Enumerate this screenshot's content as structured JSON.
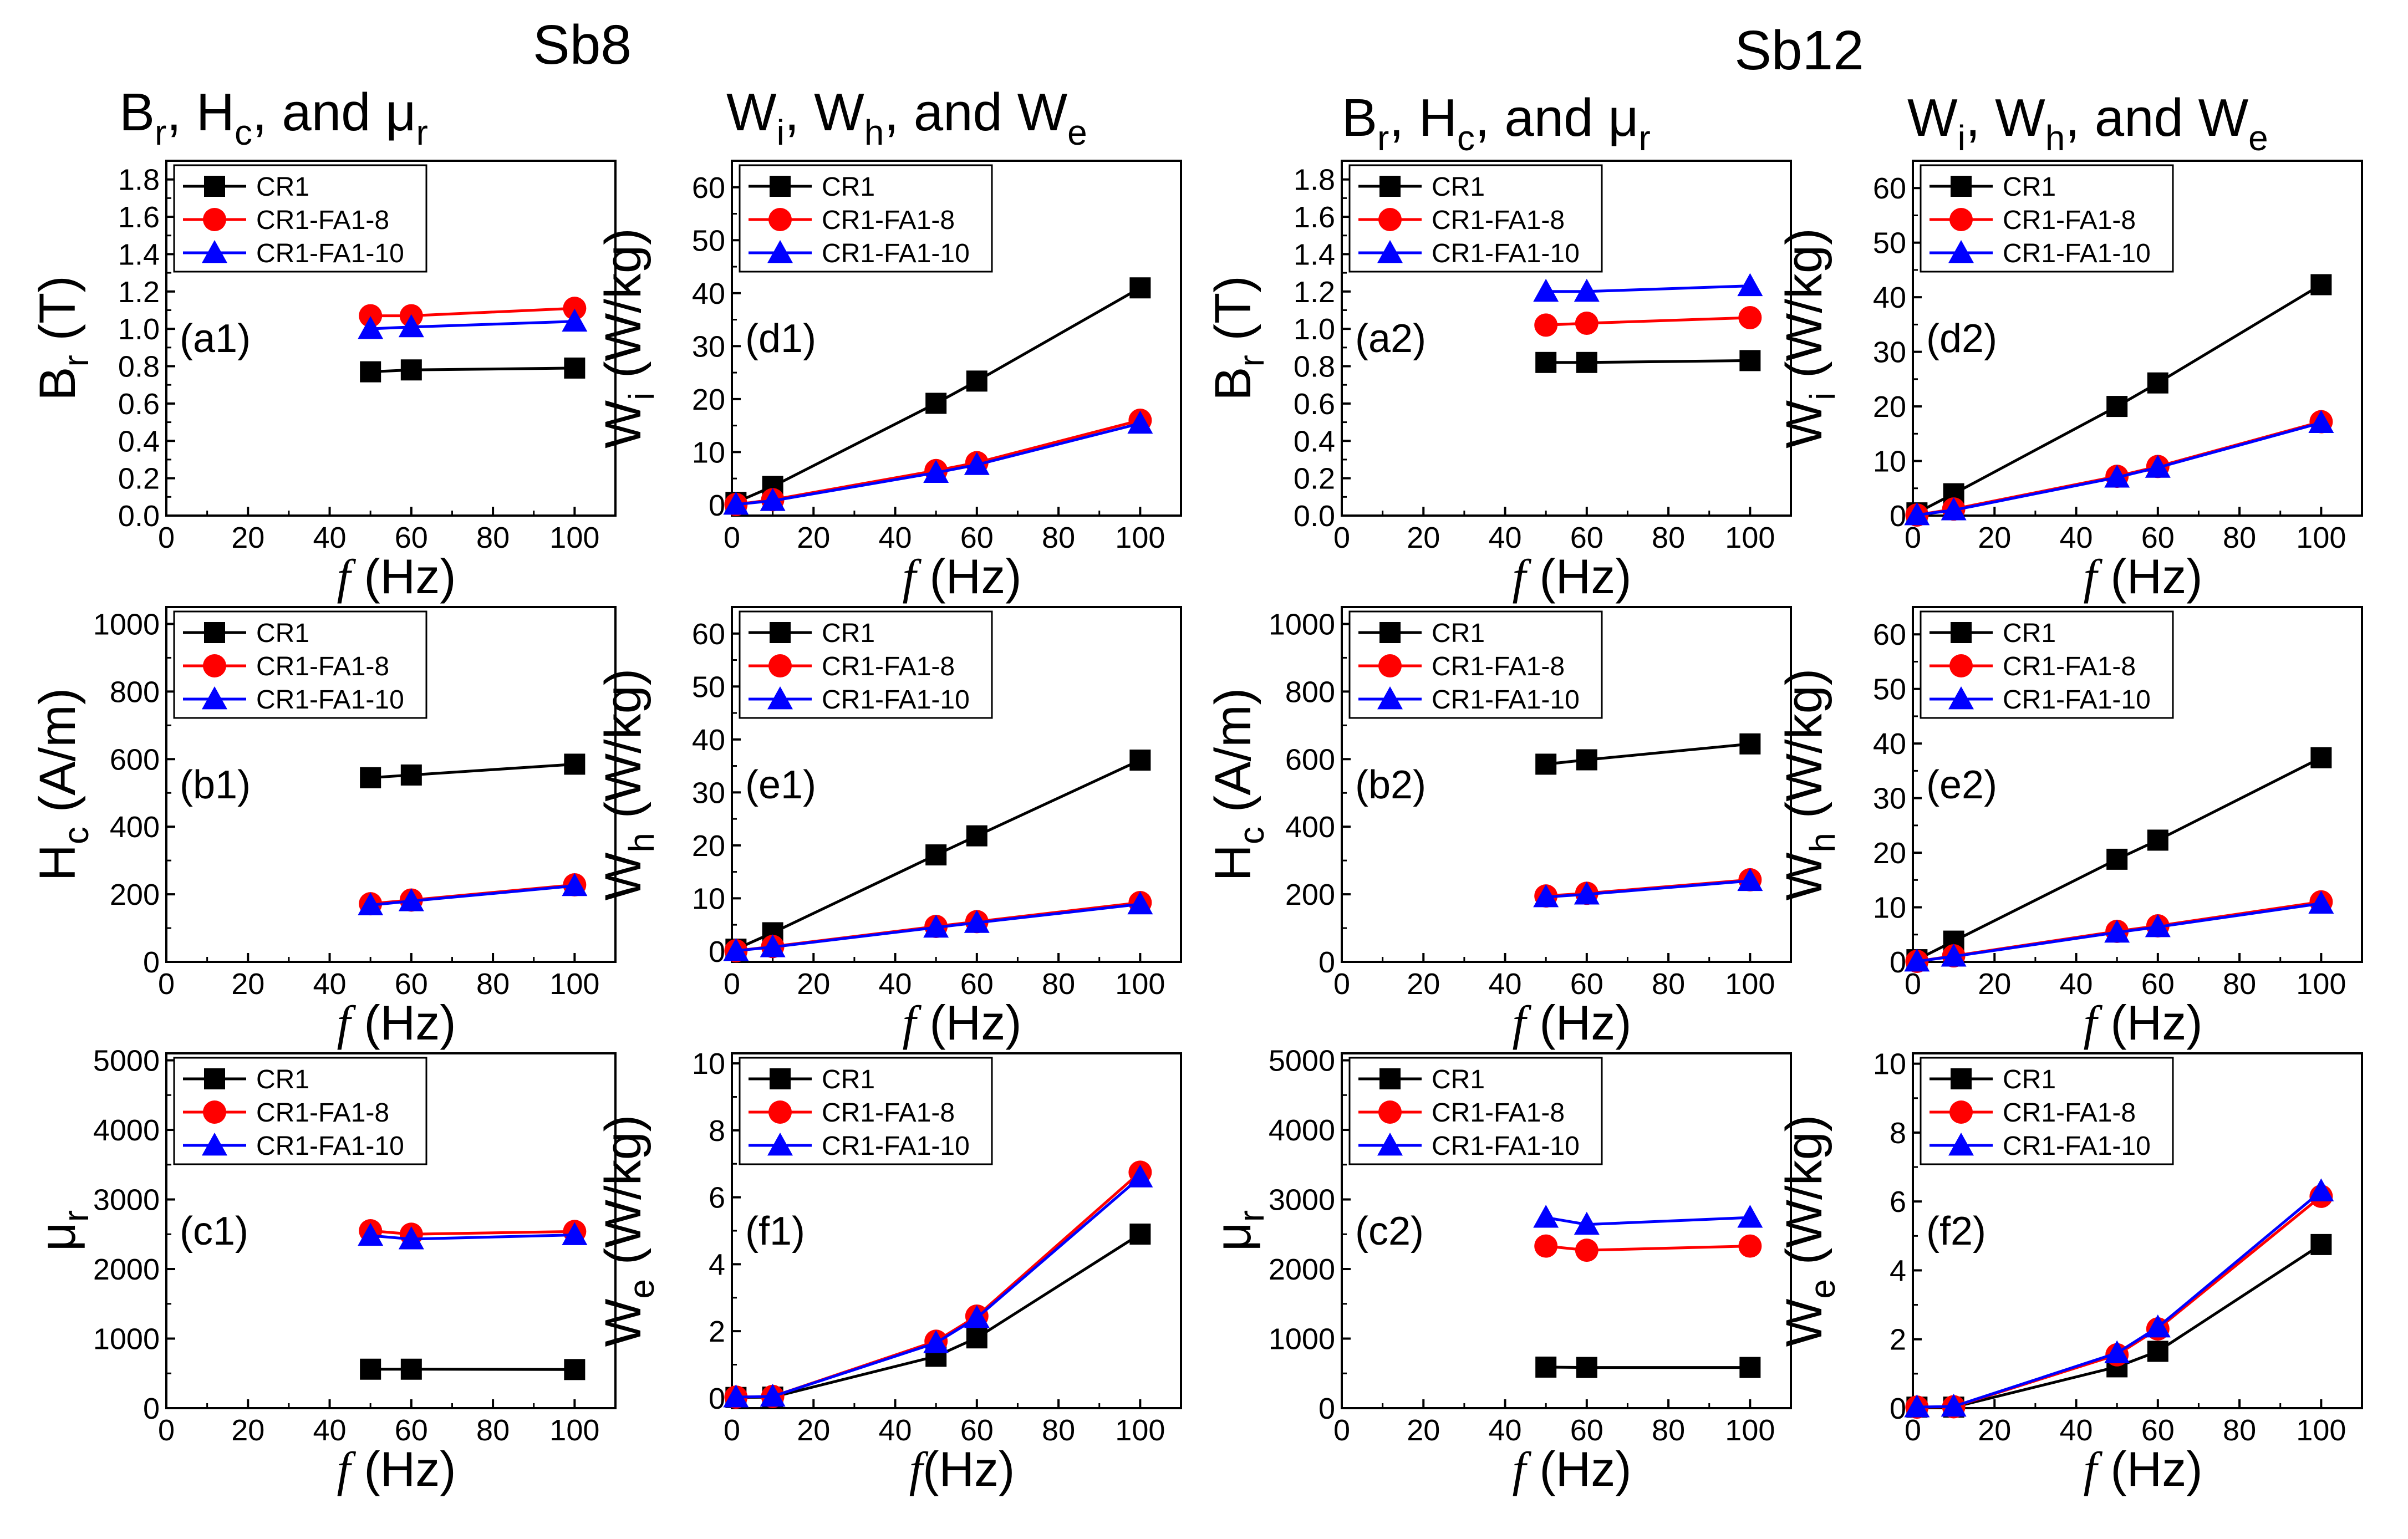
{
  "figure": {
    "group_titles": [
      "Sb8",
      "Sb12"
    ],
    "column_headers": [
      {
        "main": "B",
        "s1": "r",
        "mid": ", H",
        "s2": "c",
        "tail": ", and μ",
        "s3": "r"
      },
      {
        "main": "W",
        "s1": "i",
        "mid": ", W",
        "s2": "h",
        "tail": ", and W",
        "s3": "e"
      },
      {
        "main": "B",
        "s1": "r",
        "mid": ", H",
        "s2": "c",
        "tail": ", and μ",
        "s3": "r"
      },
      {
        "main": "W",
        "s1": "i",
        "mid": ", W",
        "s2": "h",
        "tail": ", and W",
        "s3": "e"
      }
    ]
  },
  "colors": {
    "CR1": "#000000",
    "CR1-FA1-8": "#ff0000",
    "CR1-FA1-10": "#0000ff"
  },
  "chart_data": [
    {
      "id": "a1",
      "type": "line",
      "label": "(a1)",
      "ylabel": {
        "main": "B",
        "sub": "r",
        "unit": " (T)"
      },
      "xlabel": {
        "f": "f",
        "unit": " (Hz)"
      },
      "xlim": [
        0,
        110
      ],
      "ylim": [
        0,
        1.9
      ],
      "xticks": [
        0,
        20,
        40,
        60,
        80,
        100
      ],
      "yticks": [
        0.0,
        0.2,
        0.4,
        0.6,
        0.8,
        1.0,
        1.2,
        1.4,
        1.6,
        1.8
      ],
      "ytick_decimals": 1,
      "series": [
        {
          "name": "CR1",
          "marker": "square",
          "x": [
            50,
            60,
            100
          ],
          "y": [
            0.77,
            0.78,
            0.79
          ]
        },
        {
          "name": "CR1-FA1-8",
          "marker": "circle",
          "x": [
            50,
            60,
            100
          ],
          "y": [
            1.07,
            1.07,
            1.11
          ]
        },
        {
          "name": "CR1-FA1-10",
          "marker": "triangle",
          "x": [
            50,
            60,
            100
          ],
          "y": [
            1.0,
            1.01,
            1.04
          ]
        }
      ]
    },
    {
      "id": "d1",
      "type": "line",
      "label": "(d1)",
      "ylabel": {
        "main": "W",
        "sub": "i",
        "unit": " (W/kg)"
      },
      "xlabel": {
        "f": "f",
        "unit": " (Hz)"
      },
      "xlim": [
        0,
        110
      ],
      "ylim": [
        -2,
        65
      ],
      "xticks": [
        0,
        20,
        40,
        60,
        80,
        100
      ],
      "yticks": [
        0,
        10,
        20,
        30,
        40,
        50,
        60
      ],
      "ytick_decimals": 0,
      "series": [
        {
          "name": "CR1",
          "marker": "square",
          "x": [
            1,
            10,
            50,
            60,
            100
          ],
          "y": [
            0.5,
            3.5,
            19.2,
            23.4,
            41.0
          ]
        },
        {
          "name": "CR1-FA1-8",
          "marker": "circle",
          "x": [
            1,
            10,
            50,
            60,
            100
          ],
          "y": [
            0.1,
            1.0,
            6.5,
            8.0,
            16.0
          ]
        },
        {
          "name": "CR1-FA1-10",
          "marker": "triangle",
          "x": [
            1,
            10,
            50,
            60,
            100
          ],
          "y": [
            0.1,
            0.8,
            6.1,
            7.6,
            15.4
          ]
        }
      ]
    },
    {
      "id": "a2",
      "type": "line",
      "label": "(a2)",
      "ylabel": {
        "main": "B",
        "sub": "r",
        "unit": " (T)"
      },
      "xlabel": {
        "f": "f",
        "unit": " (Hz)"
      },
      "xlim": [
        0,
        110
      ],
      "ylim": [
        0,
        1.9
      ],
      "xticks": [
        0,
        20,
        40,
        60,
        80,
        100
      ],
      "yticks": [
        0.0,
        0.2,
        0.4,
        0.6,
        0.8,
        1.0,
        1.2,
        1.4,
        1.6,
        1.8
      ],
      "ytick_decimals": 1,
      "series": [
        {
          "name": "CR1",
          "marker": "square",
          "x": [
            50,
            60,
            100
          ],
          "y": [
            0.82,
            0.82,
            0.83
          ]
        },
        {
          "name": "CR1-FA1-8",
          "marker": "circle",
          "x": [
            50,
            60,
            100
          ],
          "y": [
            1.02,
            1.03,
            1.06
          ]
        },
        {
          "name": "CR1-FA1-10",
          "marker": "triangle",
          "x": [
            50,
            60,
            100
          ],
          "y": [
            1.2,
            1.2,
            1.23
          ]
        }
      ]
    },
    {
      "id": "d2",
      "type": "line",
      "label": "(d2)",
      "ylabel": {
        "main": "W",
        "sub": "i",
        "unit": " (W/kg)"
      },
      "xlabel": {
        "f": "f",
        "unit": " (Hz)"
      },
      "xlim": [
        0,
        110
      ],
      "ylim": [
        0,
        65
      ],
      "xticks": [
        0,
        20,
        40,
        60,
        80,
        100
      ],
      "yticks": [
        0,
        10,
        20,
        30,
        40,
        50,
        60
      ],
      "ytick_decimals": 0,
      "series": [
        {
          "name": "CR1",
          "marker": "square",
          "x": [
            1,
            10,
            50,
            60,
            100
          ],
          "y": [
            0.5,
            4.0,
            20.0,
            24.3,
            42.3
          ]
        },
        {
          "name": "CR1-FA1-8",
          "marker": "circle",
          "x": [
            1,
            10,
            50,
            60,
            100
          ],
          "y": [
            0.1,
            1.2,
            7.2,
            9.0,
            17.2
          ]
        },
        {
          "name": "CR1-FA1-10",
          "marker": "triangle",
          "x": [
            1,
            10,
            50,
            60,
            100
          ],
          "y": [
            0.1,
            1.0,
            7.0,
            8.8,
            17.0
          ]
        }
      ]
    },
    {
      "id": "b1",
      "type": "line",
      "label": "(b1)",
      "ylabel": {
        "main": "H",
        "sub": "c",
        "unit": " (A/m)"
      },
      "xlabel": {
        "f": "f",
        "unit": " (Hz)"
      },
      "xlim": [
        0,
        110
      ],
      "ylim": [
        0,
        1050
      ],
      "xticks": [
        0,
        20,
        40,
        60,
        80,
        100
      ],
      "yticks": [
        0,
        200,
        400,
        600,
        800,
        1000
      ],
      "ytick_decimals": 0,
      "series": [
        {
          "name": "CR1",
          "marker": "square",
          "x": [
            50,
            60,
            100
          ],
          "y": [
            545,
            553,
            585
          ]
        },
        {
          "name": "CR1-FA1-8",
          "marker": "circle",
          "x": [
            50,
            60,
            100
          ],
          "y": [
            172,
            183,
            228
          ]
        },
        {
          "name": "CR1-FA1-10",
          "marker": "triangle",
          "x": [
            50,
            60,
            100
          ],
          "y": [
            168,
            180,
            225
          ]
        }
      ]
    },
    {
      "id": "e1",
      "type": "line",
      "label": "(e1)",
      "ylabel": {
        "main": "W",
        "sub": "h",
        "unit": " (W/kg)"
      },
      "xlabel": {
        "f": "f",
        "unit": " (Hz)"
      },
      "xlim": [
        0,
        110
      ],
      "ylim": [
        -2,
        65
      ],
      "xticks": [
        0,
        20,
        40,
        60,
        80,
        100
      ],
      "yticks": [
        0,
        10,
        20,
        30,
        40,
        50,
        60
      ],
      "ytick_decimals": 0,
      "series": [
        {
          "name": "CR1",
          "marker": "square",
          "x": [
            1,
            10,
            50,
            60,
            100
          ],
          "y": [
            0.4,
            3.5,
            18.2,
            21.8,
            36.1
          ]
        },
        {
          "name": "CR1-FA1-8",
          "marker": "circle",
          "x": [
            1,
            10,
            50,
            60,
            100
          ],
          "y": [
            0.1,
            0.9,
            4.7,
            5.6,
            9.2
          ]
        },
        {
          "name": "CR1-FA1-10",
          "marker": "triangle",
          "x": [
            1,
            10,
            50,
            60,
            100
          ],
          "y": [
            0.1,
            0.8,
            4.5,
            5.4,
            8.9
          ]
        }
      ]
    },
    {
      "id": "b2",
      "type": "line",
      "label": "(b2)",
      "ylabel": {
        "main": "H",
        "sub": "c",
        "unit": " (A/m)"
      },
      "xlabel": {
        "f": "f",
        "unit": " (Hz)"
      },
      "xlim": [
        0,
        110
      ],
      "ylim": [
        0,
        1050
      ],
      "xticks": [
        0,
        20,
        40,
        60,
        80,
        100
      ],
      "yticks": [
        0,
        200,
        400,
        600,
        800,
        1000
      ],
      "ytick_decimals": 0,
      "series": [
        {
          "name": "CR1",
          "marker": "square",
          "x": [
            50,
            60,
            100
          ],
          "y": [
            585,
            598,
            645
          ]
        },
        {
          "name": "CR1-FA1-8",
          "marker": "circle",
          "x": [
            50,
            60,
            100
          ],
          "y": [
            195,
            203,
            243
          ]
        },
        {
          "name": "CR1-FA1-10",
          "marker": "triangle",
          "x": [
            50,
            60,
            100
          ],
          "y": [
            192,
            200,
            240
          ]
        }
      ]
    },
    {
      "id": "e2",
      "type": "line",
      "label": "(e2)",
      "ylabel": {
        "main": "W",
        "sub": "h",
        "unit": " (W/kg)"
      },
      "xlabel": {
        "f": "f",
        "unit": " (Hz)"
      },
      "xlim": [
        0,
        110
      ],
      "ylim": [
        0,
        65
      ],
      "xticks": [
        0,
        20,
        40,
        60,
        80,
        100
      ],
      "yticks": [
        0,
        10,
        20,
        30,
        40,
        50,
        60
      ],
      "ytick_decimals": 0,
      "series": [
        {
          "name": "CR1",
          "marker": "square",
          "x": [
            1,
            10,
            50,
            60,
            100
          ],
          "y": [
            0.4,
            3.8,
            18.8,
            22.3,
            37.4
          ]
        },
        {
          "name": "CR1-FA1-8",
          "marker": "circle",
          "x": [
            1,
            10,
            50,
            60,
            100
          ],
          "y": [
            0.1,
            1.1,
            5.6,
            6.6,
            11.0
          ]
        },
        {
          "name": "CR1-FA1-10",
          "marker": "triangle",
          "x": [
            1,
            10,
            50,
            60,
            100
          ],
          "y": [
            0.1,
            1.0,
            5.4,
            6.4,
            10.7
          ]
        }
      ]
    },
    {
      "id": "c1",
      "type": "line",
      "label": "(c1)",
      "ylabel": {
        "main": "μ",
        "sub": "r",
        "unit": ""
      },
      "xlabel": {
        "f": "f",
        "unit": " (Hz)"
      },
      "xlim": [
        0,
        110
      ],
      "ylim": [
        0,
        5100
      ],
      "xticks": [
        0,
        20,
        40,
        60,
        80,
        100
      ],
      "yticks": [
        0,
        1000,
        2000,
        3000,
        4000,
        5000
      ],
      "ytick_decimals": 0,
      "series": [
        {
          "name": "CR1",
          "marker": "square",
          "x": [
            50,
            60,
            100
          ],
          "y": [
            560,
            560,
            555
          ]
        },
        {
          "name": "CR1-FA1-8",
          "marker": "circle",
          "x": [
            50,
            60,
            100
          ],
          "y": [
            2550,
            2500,
            2540
          ]
        },
        {
          "name": "CR1-FA1-10",
          "marker": "triangle",
          "x": [
            50,
            60,
            100
          ],
          "y": [
            2480,
            2430,
            2490
          ]
        }
      ]
    },
    {
      "id": "f1",
      "type": "line",
      "label": "(f1)",
      "ylabel": {
        "main": "W",
        "sub": "e",
        "unit": " (W/kg)"
      },
      "xlabel": {
        "f": "f",
        "unit": "(Hz)"
      },
      "xlim": [
        0,
        110
      ],
      "ylim": [
        -0.3,
        10.3
      ],
      "xticks": [
        0,
        20,
        40,
        60,
        80,
        100
      ],
      "yticks": [
        0,
        2,
        4,
        6,
        8,
        10
      ],
      "ytick_decimals": 0,
      "series": [
        {
          "name": "CR1",
          "marker": "square",
          "x": [
            1,
            10,
            50,
            60,
            100
          ],
          "y": [
            0.02,
            0.03,
            1.25,
            1.8,
            4.9
          ]
        },
        {
          "name": "CR1-FA1-8",
          "marker": "circle",
          "x": [
            1,
            10,
            50,
            60,
            100
          ],
          "y": [
            0.03,
            0.05,
            1.7,
            2.45,
            6.75
          ]
        },
        {
          "name": "CR1-FA1-10",
          "marker": "triangle",
          "x": [
            1,
            10,
            50,
            60,
            100
          ],
          "y": [
            0.03,
            0.05,
            1.65,
            2.4,
            6.6
          ]
        }
      ]
    },
    {
      "id": "c2",
      "type": "line",
      "label": "(c2)",
      "ylabel": {
        "main": "μ",
        "sub": "r",
        "unit": ""
      },
      "xlabel": {
        "f": "f",
        "unit": " (Hz)"
      },
      "xlim": [
        0,
        110
      ],
      "ylim": [
        0,
        5100
      ],
      "xticks": [
        0,
        20,
        40,
        60,
        80,
        100
      ],
      "yticks": [
        0,
        1000,
        2000,
        3000,
        4000,
        5000
      ],
      "ytick_decimals": 0,
      "series": [
        {
          "name": "CR1",
          "marker": "square",
          "x": [
            50,
            60,
            100
          ],
          "y": [
            590,
            585,
            585
          ]
        },
        {
          "name": "CR1-FA1-8",
          "marker": "circle",
          "x": [
            50,
            60,
            100
          ],
          "y": [
            2330,
            2270,
            2330
          ]
        },
        {
          "name": "CR1-FA1-10",
          "marker": "triangle",
          "x": [
            50,
            60,
            100
          ],
          "y": [
            2740,
            2640,
            2740
          ]
        }
      ]
    },
    {
      "id": "f2",
      "type": "line",
      "label": "(f2)",
      "ylabel": {
        "main": "W",
        "sub": "e",
        "unit": " (W/kg)"
      },
      "xlabel": {
        "f": "f",
        "unit": " (Hz)"
      },
      "xlim": [
        0,
        110
      ],
      "ylim": [
        0,
        10.3
      ],
      "xticks": [
        0,
        20,
        40,
        60,
        80,
        100
      ],
      "yticks": [
        0,
        2,
        4,
        6,
        8,
        10
      ],
      "ytick_decimals": 0,
      "series": [
        {
          "name": "CR1",
          "marker": "square",
          "x": [
            1,
            10,
            50,
            60,
            100
          ],
          "y": [
            0.03,
            0.03,
            1.2,
            1.65,
            4.75
          ]
        },
        {
          "name": "CR1-FA1-8",
          "marker": "circle",
          "x": [
            1,
            10,
            50,
            60,
            100
          ],
          "y": [
            0.03,
            0.04,
            1.55,
            2.3,
            6.15
          ]
        },
        {
          "name": "CR1-FA1-10",
          "marker": "triangle",
          "x": [
            1,
            10,
            50,
            60,
            100
          ],
          "y": [
            0.03,
            0.05,
            1.6,
            2.35,
            6.3
          ]
        }
      ]
    }
  ]
}
